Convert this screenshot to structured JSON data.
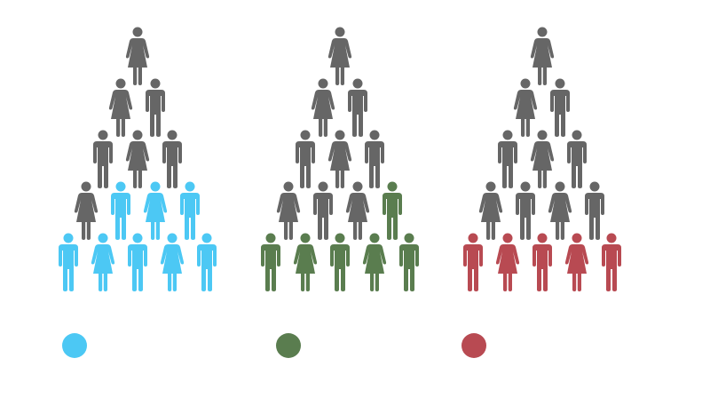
{
  "colors": {
    "base": "#666666",
    "blue": "#4cc8f4",
    "green": "#5a7d4f",
    "red": "#b84a52"
  },
  "groups": [
    {
      "accent": "#4cc8f4",
      "highlighted": 8,
      "total": 15,
      "legend_label": "",
      "rows": [
        [
          "f"
        ],
        [
          "f",
          "m"
        ],
        [
          "m",
          "f",
          "m"
        ],
        [
          "f",
          "m",
          "f",
          "m"
        ],
        [
          "m",
          "f",
          "m",
          "f",
          "m"
        ]
      ]
    },
    {
      "accent": "#5a7d4f",
      "highlighted": 6,
      "total": 15,
      "legend_label": "",
      "rows": [
        [
          "f"
        ],
        [
          "f",
          "m"
        ],
        [
          "m",
          "f",
          "m"
        ],
        [
          "f",
          "m",
          "f",
          "m"
        ],
        [
          "m",
          "f",
          "m",
          "f",
          "m"
        ]
      ]
    },
    {
      "accent": "#b84a52",
      "highlighted": 5,
      "total": 15,
      "legend_label": "",
      "rows": [
        [
          "f"
        ],
        [
          "f",
          "m"
        ],
        [
          "m",
          "f",
          "m"
        ],
        [
          "f",
          "m",
          "f",
          "m"
        ],
        [
          "m",
          "f",
          "m",
          "f",
          "m"
        ]
      ]
    }
  ]
}
